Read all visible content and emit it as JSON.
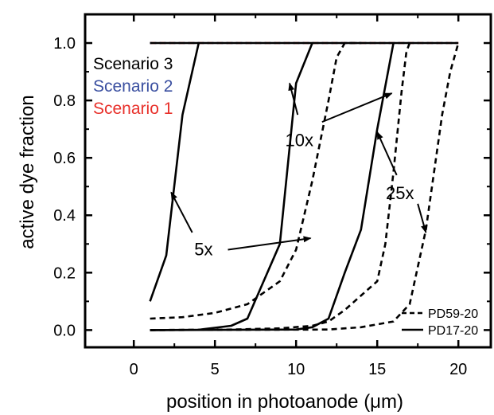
{
  "chart_data": {
    "type": "line",
    "title": "",
    "xlabel": "position in photoanode (μm)",
    "ylabel": "active dye fraction",
    "xlim": [
      -3,
      22
    ],
    "ylim": [
      -0.06,
      1.1
    ],
    "x_ticks": [
      0,
      5,
      10,
      15,
      20
    ],
    "y_ticks": [
      0.0,
      0.2,
      0.4,
      0.6,
      0.8,
      1.0
    ],
    "x_tick_labels": [
      "0",
      "5",
      "10",
      "15",
      "20"
    ],
    "y_tick_labels": [
      "0.0",
      "0.2",
      "0.4",
      "0.6",
      "0.8",
      "1.0"
    ],
    "grid": false,
    "series": [
      {
        "name": "Scenario 1",
        "style": "dashed",
        "color": "#e8302a",
        "points": [
          [
            1,
            1.0
          ],
          [
            20,
            1.0
          ]
        ]
      },
      {
        "name": "Scenario 2",
        "style": "dotted",
        "color": "#3a4fa0",
        "points": [
          [
            1,
            1.0
          ],
          [
            20,
            1.0
          ]
        ]
      },
      {
        "name": "Scenario 3",
        "style": "solid",
        "color": "#000000",
        "points": [
          [
            1,
            1.0
          ],
          [
            20,
            1.0
          ]
        ]
      },
      {
        "name": "PD17-20",
        "style": "solid",
        "color": "#000000",
        "group": "5x",
        "points": [
          [
            1,
            0.1
          ],
          [
            2,
            0.26
          ],
          [
            3,
            0.75
          ],
          [
            4,
            1.0
          ]
        ]
      },
      {
        "name": "PD59-20",
        "style": "dashed",
        "color": "#000000",
        "group": "5x",
        "points": [
          [
            1,
            0.04
          ],
          [
            3,
            0.045
          ],
          [
            5,
            0.06
          ],
          [
            7,
            0.09
          ],
          [
            9,
            0.17
          ],
          [
            10,
            0.28
          ],
          [
            11,
            0.52
          ],
          [
            12,
            0.8
          ],
          [
            12.5,
            0.95
          ],
          [
            13,
            1.0
          ],
          [
            14,
            1.0
          ]
        ]
      },
      {
        "name": "PD17-20",
        "style": "solid",
        "color": "#000000",
        "group": "10x",
        "points": [
          [
            1,
            0.0
          ],
          [
            4,
            0.001
          ],
          [
            6,
            0.015
          ],
          [
            7,
            0.04
          ],
          [
            8,
            0.17
          ],
          [
            9,
            0.3
          ],
          [
            10,
            0.86
          ],
          [
            11,
            1.0
          ]
        ]
      },
      {
        "name": "PD59-20",
        "style": "dashed",
        "color": "#000000",
        "group": "10x",
        "points": [
          [
            1,
            0.0
          ],
          [
            6,
            0.002
          ],
          [
            9,
            0.006
          ],
          [
            11,
            0.015
          ],
          [
            12,
            0.03
          ],
          [
            13,
            0.07
          ],
          [
            14,
            0.12
          ],
          [
            15,
            0.17
          ],
          [
            15.5,
            0.3
          ],
          [
            16,
            0.55
          ],
          [
            16.5,
            0.83
          ],
          [
            16.8,
            0.97
          ],
          [
            17,
            1.0
          ]
        ]
      },
      {
        "name": "PD17-20",
        "style": "solid",
        "color": "#000000",
        "group": "25x",
        "points": [
          [
            1,
            0.0
          ],
          [
            10,
            0.002
          ],
          [
            11,
            0.01
          ],
          [
            12,
            0.04
          ],
          [
            13,
            0.2
          ],
          [
            14,
            0.35
          ],
          [
            15,
            0.7
          ],
          [
            16,
            1.0
          ]
        ]
      },
      {
        "name": "PD59-20",
        "style": "dashed",
        "color": "#000000",
        "group": "25x",
        "points": [
          [
            1,
            0.0
          ],
          [
            12,
            0.002
          ],
          [
            14,
            0.01
          ],
          [
            16,
            0.03
          ],
          [
            17,
            0.09
          ],
          [
            18,
            0.35
          ],
          [
            19,
            0.75
          ],
          [
            19.5,
            0.9
          ],
          [
            20,
            1.0
          ]
        ]
      }
    ],
    "legend_scenarios": {
      "placement": "top-left",
      "entries": [
        {
          "label": "Scenario 3",
          "color": "#000000"
        },
        {
          "label": "Scenario 2",
          "color": "#3a4fa0"
        },
        {
          "label": "Scenario 1",
          "color": "#e8302a"
        }
      ]
    },
    "legend_lines": {
      "placement": "bottom-right",
      "entries": [
        {
          "label": "PD59-20",
          "style": "dashed"
        },
        {
          "label": "PD17-20",
          "style": "solid"
        }
      ]
    },
    "annotations": [
      {
        "text": "5x",
        "at": [
          4.3,
          0.28
        ],
        "arrows": [
          [
            [
              3.6,
              0.34
            ],
            [
              2.3,
              0.48
            ]
          ],
          [
            [
              5.8,
              0.28
            ],
            [
              10.9,
              0.32
            ]
          ]
        ]
      },
      {
        "text": "10x",
        "at": [
          10.2,
          0.66
        ],
        "arrows": [
          [
            [
              10.1,
              0.75
            ],
            [
              9.6,
              0.86
            ]
          ],
          [
            [
              11.6,
              0.725
            ],
            [
              15.9,
              0.825
            ]
          ]
        ]
      },
      {
        "text": "25x",
        "at": [
          16.4,
          0.475
        ],
        "arrows": [
          [
            [
              16.2,
              0.54
            ],
            [
              15.0,
              0.69
            ]
          ],
          [
            [
              17.5,
              0.44
            ],
            [
              18.0,
              0.34
            ]
          ]
        ]
      }
    ]
  }
}
